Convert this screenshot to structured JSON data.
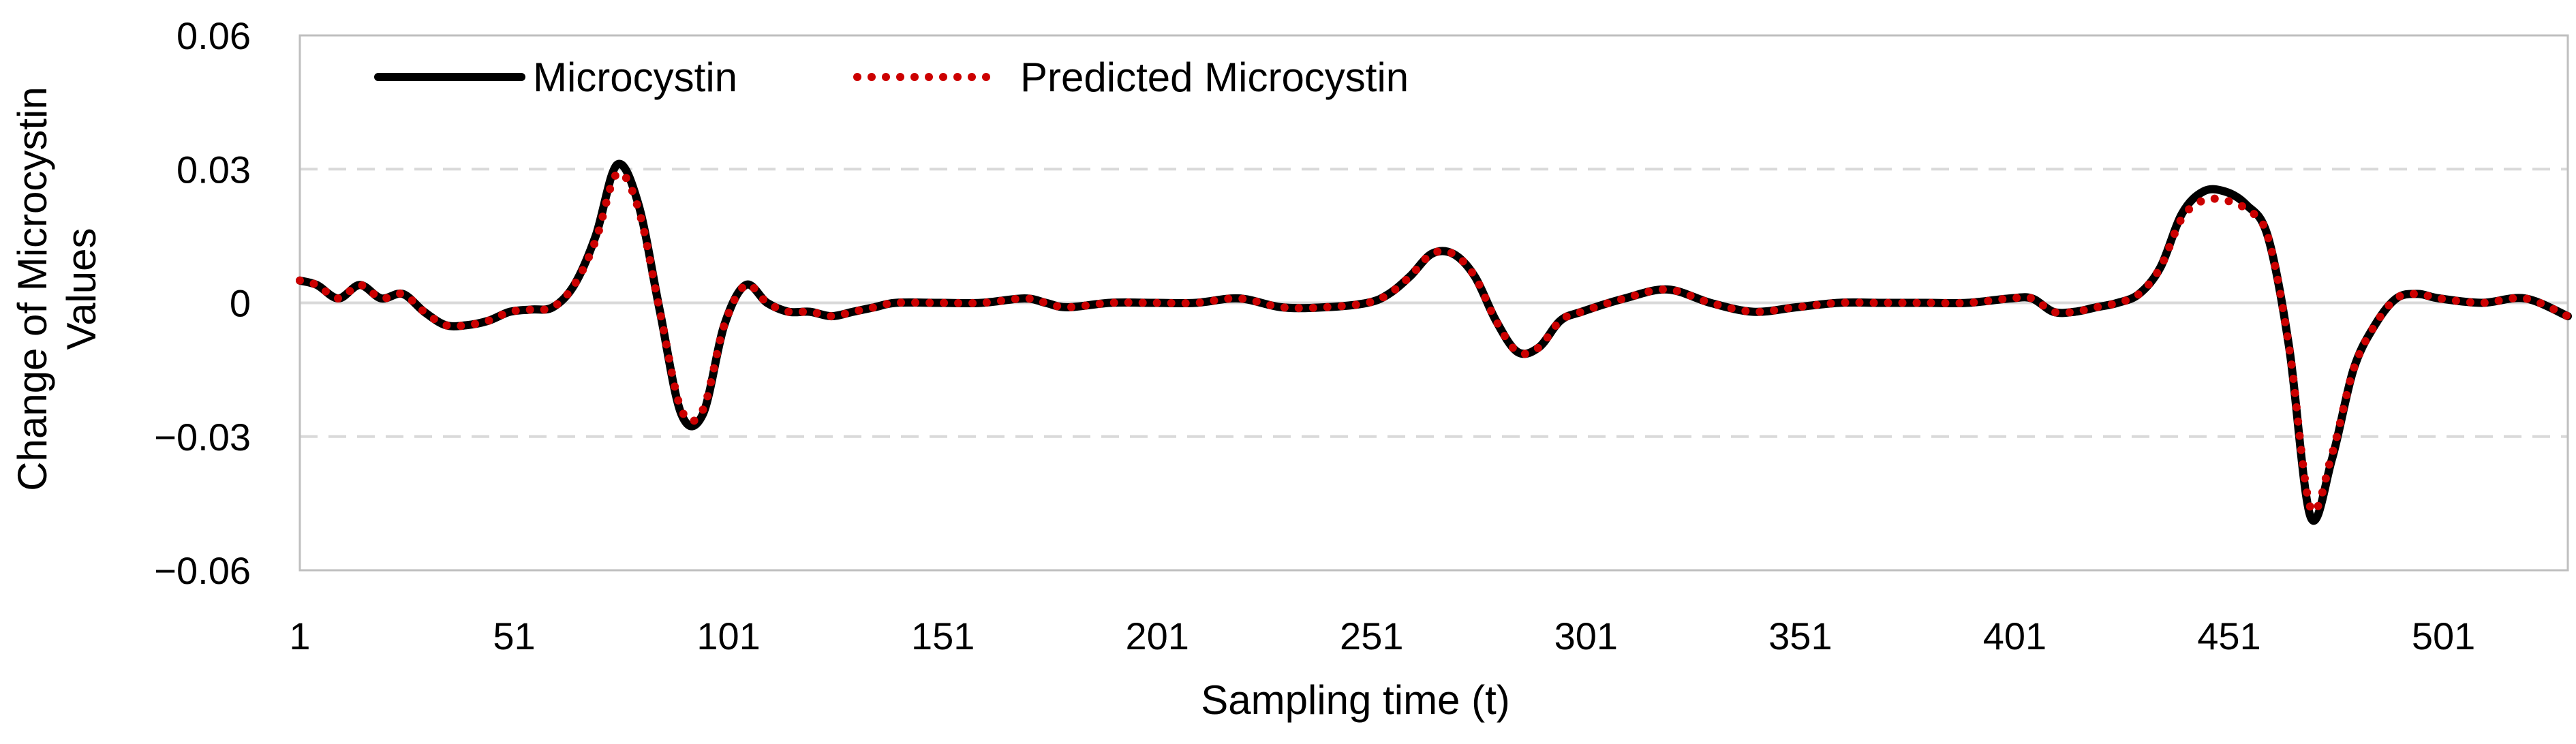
{
  "chart_data": {
    "type": "line",
    "xlabel": "Sampling time (t)",
    "ylabel": [
      "Change of Microcystin",
      "Values"
    ],
    "x_ticks": [
      1,
      51,
      101,
      151,
      201,
      251,
      301,
      351,
      401,
      451,
      501
    ],
    "xlim": [
      1,
      530
    ],
    "y_ticks": [
      0.06,
      0.03,
      0,
      -0.03,
      -0.06
    ],
    "y_tick_labels": [
      "0.06",
      "0.03",
      "0",
      "−0.03",
      "−0.06"
    ],
    "ylim": [
      -0.06,
      0.06
    ],
    "grid": "horizontal dashed",
    "legend_position": "top-left",
    "series": [
      {
        "name": "Microcystin",
        "color": "#000000",
        "style": "solid",
        "x": [
          1,
          5,
          10,
          15,
          20,
          25,
          30,
          35,
          40,
          45,
          50,
          55,
          60,
          65,
          70,
          75,
          80,
          85,
          90,
          95,
          100,
          105,
          110,
          115,
          120,
          125,
          130,
          135,
          140,
          150,
          160,
          170,
          175,
          180,
          190,
          200,
          210,
          220,
          230,
          240,
          250,
          255,
          260,
          265,
          270,
          275,
          280,
          285,
          290,
          295,
          300,
          310,
          320,
          330,
          340,
          350,
          360,
          370,
          380,
          390,
          400,
          405,
          410,
          415,
          420,
          425,
          430,
          435,
          440,
          445,
          450,
          455,
          460,
          465,
          470,
          475,
          480,
          485,
          490,
          495,
          500,
          510,
          520,
          530
        ],
        "y": [
          0.005,
          0.004,
          0.001,
          0.004,
          0.001,
          0.002,
          -0.002,
          -0.005,
          -0.005,
          -0.004,
          -0.002,
          -0.0015,
          -0.001,
          0.004,
          0.015,
          0.031,
          0.022,
          -0.002,
          -0.025,
          -0.025,
          -0.005,
          0.004,
          0.0,
          -0.002,
          -0.002,
          -0.003,
          -0.002,
          -0.001,
          0.0,
          0.0,
          0.0,
          0.001,
          0.0,
          -0.001,
          0.0,
          0.0,
          0.0,
          0.001,
          -0.001,
          -0.001,
          0.0,
          0.002,
          0.006,
          0.011,
          0.011,
          0.006,
          -0.004,
          -0.011,
          -0.01,
          -0.004,
          -0.002,
          0.001,
          0.003,
          0.0,
          -0.002,
          -0.001,
          0.0,
          0.0,
          0.0,
          0.0,
          0.001,
          0.001,
          -0.002,
          -0.002,
          -0.001,
          0.0,
          0.002,
          0.008,
          0.02,
          0.025,
          0.025,
          0.022,
          0.015,
          -0.01,
          -0.048,
          -0.035,
          -0.015,
          -0.005,
          0.001,
          0.002,
          0.001,
          0.0,
          0.001,
          -0.003
        ]
      },
      {
        "name": "Predicted Microcystin",
        "color": "#cc0000",
        "style": "dotted",
        "x": [
          1,
          5,
          10,
          15,
          20,
          25,
          30,
          35,
          40,
          45,
          50,
          55,
          60,
          65,
          70,
          75,
          80,
          85,
          90,
          95,
          100,
          105,
          110,
          115,
          120,
          125,
          130,
          135,
          140,
          150,
          160,
          170,
          175,
          180,
          190,
          200,
          210,
          220,
          230,
          240,
          250,
          255,
          260,
          265,
          270,
          275,
          280,
          285,
          290,
          295,
          300,
          310,
          320,
          330,
          340,
          350,
          360,
          370,
          380,
          390,
          400,
          405,
          410,
          415,
          420,
          425,
          430,
          435,
          440,
          445,
          450,
          455,
          460,
          465,
          470,
          475,
          480,
          485,
          490,
          495,
          500,
          510,
          520,
          530
        ],
        "y": [
          0.005,
          0.004,
          0.001,
          0.004,
          0.001,
          0.002,
          -0.002,
          -0.005,
          -0.005,
          -0.004,
          -0.002,
          -0.0015,
          -0.001,
          0.004,
          0.014,
          0.029,
          0.021,
          -0.002,
          -0.024,
          -0.024,
          -0.005,
          0.004,
          0.0,
          -0.002,
          -0.002,
          -0.003,
          -0.002,
          -0.001,
          0.0,
          0.0,
          0.0,
          0.001,
          0.0,
          -0.001,
          0.0,
          0.0,
          0.0,
          0.001,
          -0.001,
          -0.001,
          0.0,
          0.002,
          0.006,
          0.011,
          0.011,
          0.006,
          -0.004,
          -0.011,
          -0.01,
          -0.004,
          -0.002,
          0.001,
          0.003,
          0.0,
          -0.002,
          -0.001,
          0.0,
          0.0,
          0.0,
          0.0,
          0.001,
          0.001,
          -0.002,
          -0.002,
          -0.001,
          0.0,
          0.002,
          0.008,
          0.019,
          0.023,
          0.023,
          0.021,
          0.015,
          -0.01,
          -0.046,
          -0.034,
          -0.015,
          -0.005,
          0.001,
          0.002,
          0.001,
          0.0,
          0.001,
          -0.003
        ]
      }
    ]
  }
}
